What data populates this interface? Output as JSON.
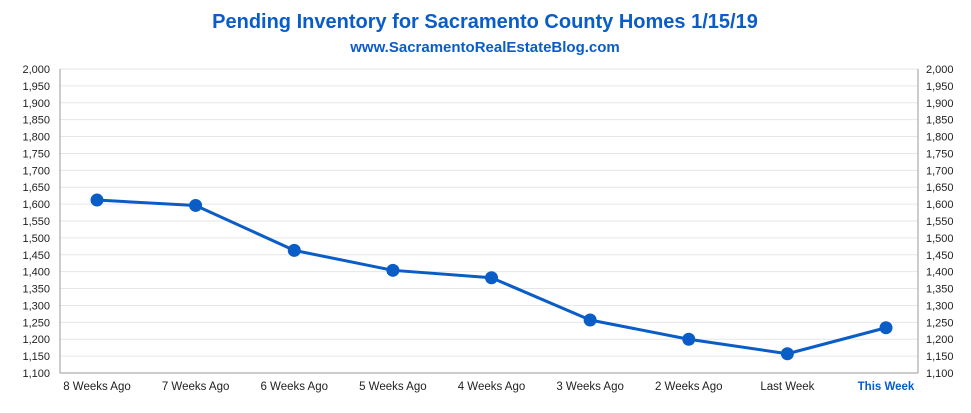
{
  "chart_data": {
    "type": "line",
    "title": "Pending Inventory for Sacramento County Homes 1/15/19",
    "subtitle": "www.SacramentoRealEstateBlog.com",
    "categories": [
      "8 Weeks Ago",
      "7 Weeks Ago",
      "6 Weeks Ago",
      "5 Weeks Ago",
      "4 Weeks Ago",
      "3 Weeks Ago",
      "2 Weeks Ago",
      "Last Week",
      "This Week"
    ],
    "highlight_category": "This Week",
    "series": [
      {
        "values": [
          1612,
          1596,
          1463,
          1404,
          1382,
          1257,
          1200,
          1157,
          1234
        ]
      }
    ],
    "ylim": [
      1100,
      2000
    ],
    "ytick_step": 50,
    "yticks": [
      "1,100",
      "1,150",
      "1,200",
      "1,250",
      "1,300",
      "1,350",
      "1,400",
      "1,450",
      "1,500",
      "1,550",
      "1,600",
      "1,650",
      "1,700",
      "1,750",
      "1,800",
      "1,850",
      "1,900",
      "1,950",
      "2,000"
    ],
    "axes": "left-and-right",
    "grid": true,
    "legend": "none",
    "line_color": "#0a5cc7",
    "xlabel": "",
    "ylabel": ""
  }
}
